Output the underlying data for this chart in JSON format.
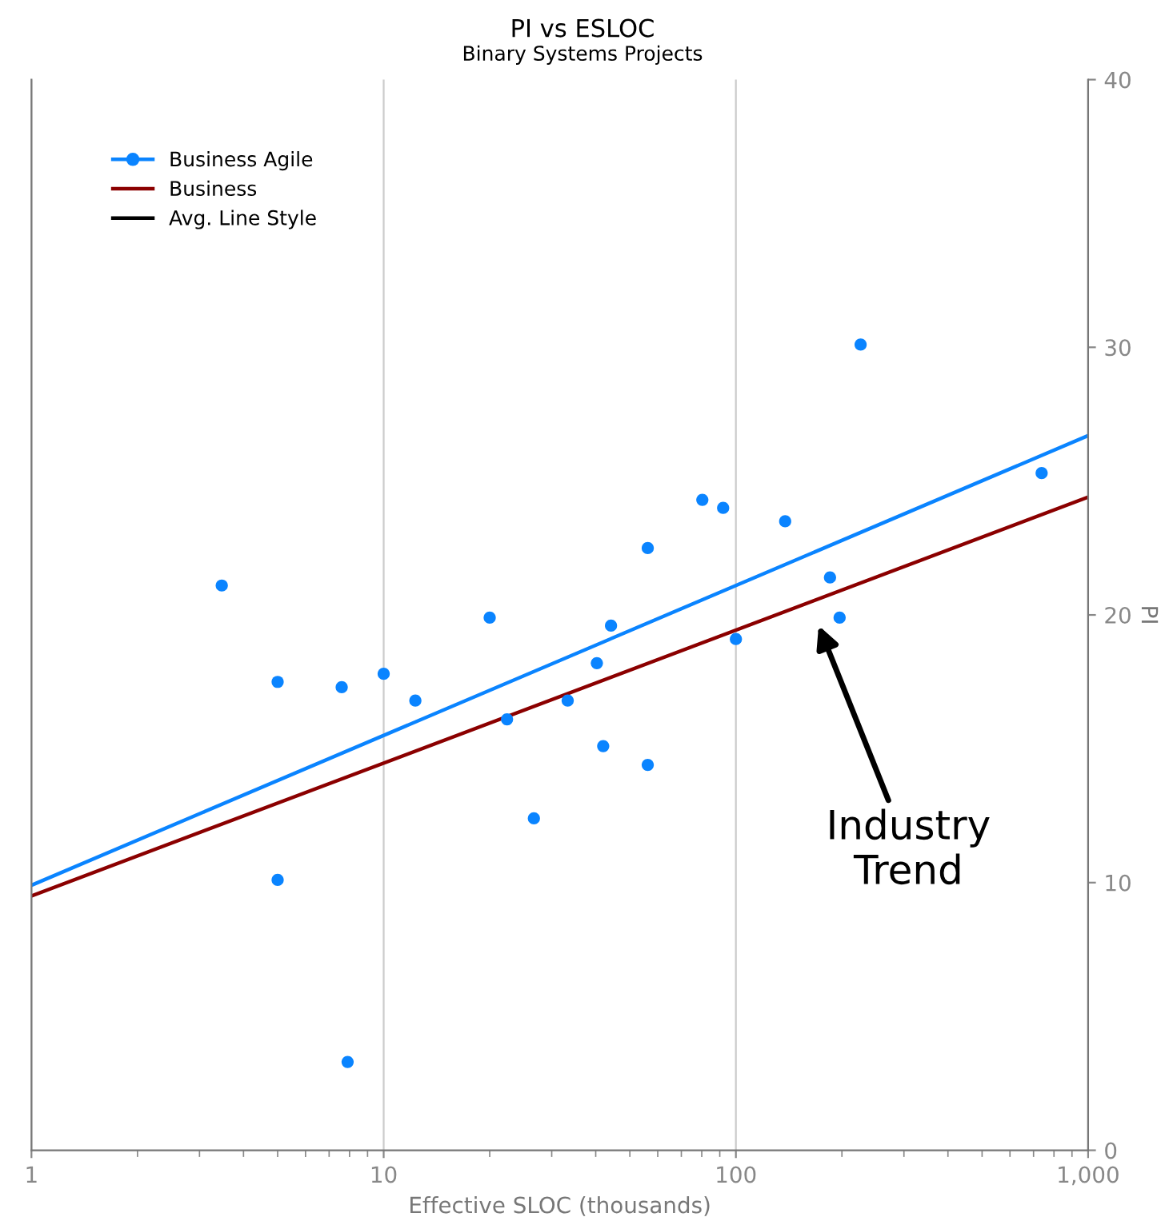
{
  "chart_data": {
    "type": "scatter",
    "title": "PI vs ESLOC",
    "subtitle": "Binary Systems Projects",
    "xlabel": "Effective SLOC (thousands)",
    "ylabel": "PI",
    "log": "x",
    "xlim": [
      1,
      1000
    ],
    "xticks": [
      1,
      10,
      100,
      {
        "value": 1000,
        "label": "1,000"
      }
    ],
    "ylim": [
      0,
      40
    ],
    "yticks": [
      0,
      10,
      20,
      30,
      40
    ],
    "grid": "x",
    "legend": "top left",
    "series": [
      {
        "name": "Business Agile",
        "marker": "circle",
        "color": "#0a84ff",
        "x": [
          3.47,
          5.0,
          7.6,
          10,
          12.3,
          20,
          22.4,
          26.7,
          33.3,
          40.3,
          42,
          44.2,
          56.2,
          56.2,
          80.3,
          92,
          100,
          138,
          185,
          197,
          226,
          738,
          5.0,
          7.9
        ],
        "values": [
          21.1,
          17.5,
          17.3,
          17.8,
          16.8,
          19.9,
          16.1,
          12.4,
          16.8,
          18.2,
          15.1,
          19.6,
          22.5,
          14.4,
          24.3,
          24.0,
          19.1,
          23.5,
          21.4,
          19.9,
          30.1,
          25.3,
          10.1,
          3.3
        ]
      },
      {
        "type": "line",
        "color": "#0a84ff",
        "x": [
          1,
          1000
        ],
        "values": [
          9.9,
          26.7
        ]
      },
      {
        "name": "Business",
        "type": "line",
        "color": "#8b0000",
        "x": [
          1,
          1000
        ],
        "values": [
          9.5,
          24.4
        ]
      },
      {
        "name": "Avg. Line Style",
        "type": "line",
        "color": "#000000"
      }
    ],
    "annotations": [
      "Industry\nTrend"
    ]
  }
}
